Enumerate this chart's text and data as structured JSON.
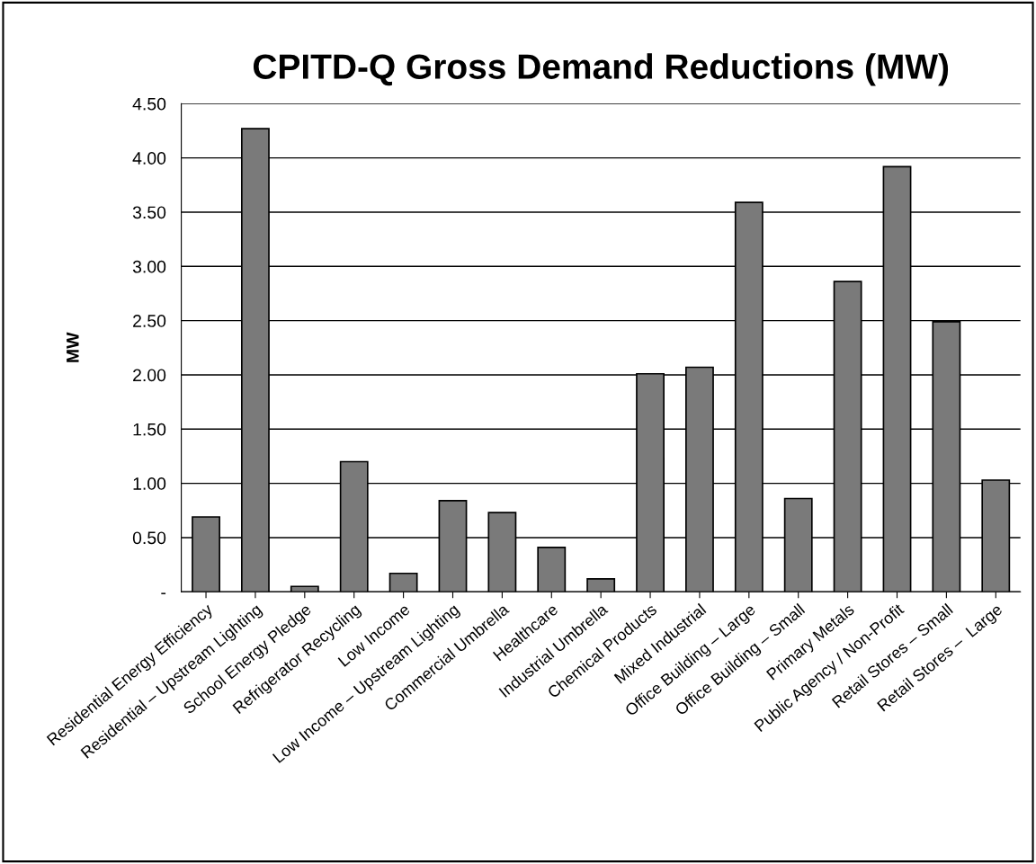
{
  "chart_data": {
    "type": "bar",
    "title": "CPITD-Q Gross Demand Reductions (MW)",
    "ylabel": "MW",
    "categories": [
      "Residential Energy Efficiency",
      "Residential – Upstream Lighting",
      "School Energy Pledge",
      "Refrigerator Recycling",
      "Low Income",
      "Low Income – Upstream Lighting",
      "Commercial Umbrella",
      "Healthcare",
      "Industrial Umbrella",
      "Chemical Products",
      "Mixed Industrial",
      "Office Building – Large",
      "Office Building – Small",
      "Primary Metals",
      "Public Agency / Non-Profit",
      "Retail Stores – Small",
      "Retail Stores –  Large"
    ],
    "values": [
      0.69,
      4.27,
      0.05,
      1.2,
      0.17,
      0.84,
      0.73,
      0.41,
      0.12,
      2.01,
      2.07,
      3.59,
      0.86,
      2.86,
      3.92,
      2.49,
      1.03
    ],
    "color": "#7a7a7a",
    "ylim": [
      0,
      4.5
    ],
    "yticks": [
      {
        "value": 0,
        "label": "-"
      },
      {
        "value": 0.5,
        "label": "0.50"
      },
      {
        "value": 1,
        "label": "1.00"
      },
      {
        "value": 1.5,
        "label": "1.50"
      },
      {
        "value": 2,
        "label": "2.00"
      },
      {
        "value": 2.5,
        "label": "2.50"
      },
      {
        "value": 3,
        "label": "3.00"
      },
      {
        "value": 3.5,
        "label": "3.50"
      },
      {
        "value": 4,
        "label": "4.00"
      },
      {
        "value": 4.5,
        "label": "4.50"
      }
    ],
    "grid": "y",
    "legend": false
  }
}
